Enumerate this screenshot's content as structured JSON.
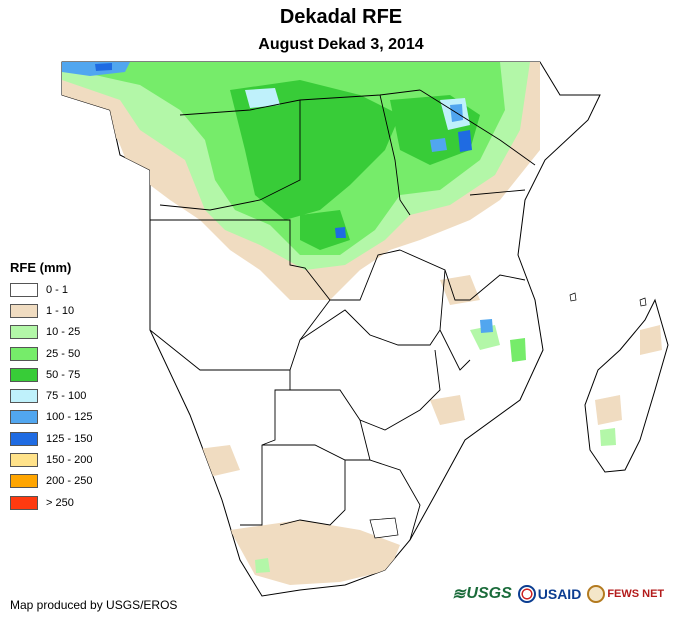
{
  "title": "Dekadal RFE",
  "subtitle": "August Dekad 3, 2014",
  "legend": {
    "title": "RFE (mm)",
    "items": [
      {
        "label": "0 - 1",
        "color": "#ffffff"
      },
      {
        "label": "1 - 10",
        "color": "#f0dcc1"
      },
      {
        "label": "10 - 25",
        "color": "#b3f7a8"
      },
      {
        "label": "25 - 50",
        "color": "#76ec6a"
      },
      {
        "label": "50 - 75",
        "color": "#38cc38"
      },
      {
        "label": "75 - 100",
        "color": "#bff1fb"
      },
      {
        "label": "100 - 125",
        "color": "#51a6ef"
      },
      {
        "label": "125 - 150",
        "color": "#1f6be2"
      },
      {
        "label": "150 - 200",
        "color": "#ffe28a"
      },
      {
        "label": "200 - 250",
        "color": "#ffa500"
      },
      {
        "label": "> 250",
        "color": "#ff3a10"
      }
    ]
  },
  "credit": "Map produced by USGS/EROS",
  "logos": {
    "usgs": "USGS",
    "usaid": "USAID",
    "fews": "FEWS NET"
  }
}
